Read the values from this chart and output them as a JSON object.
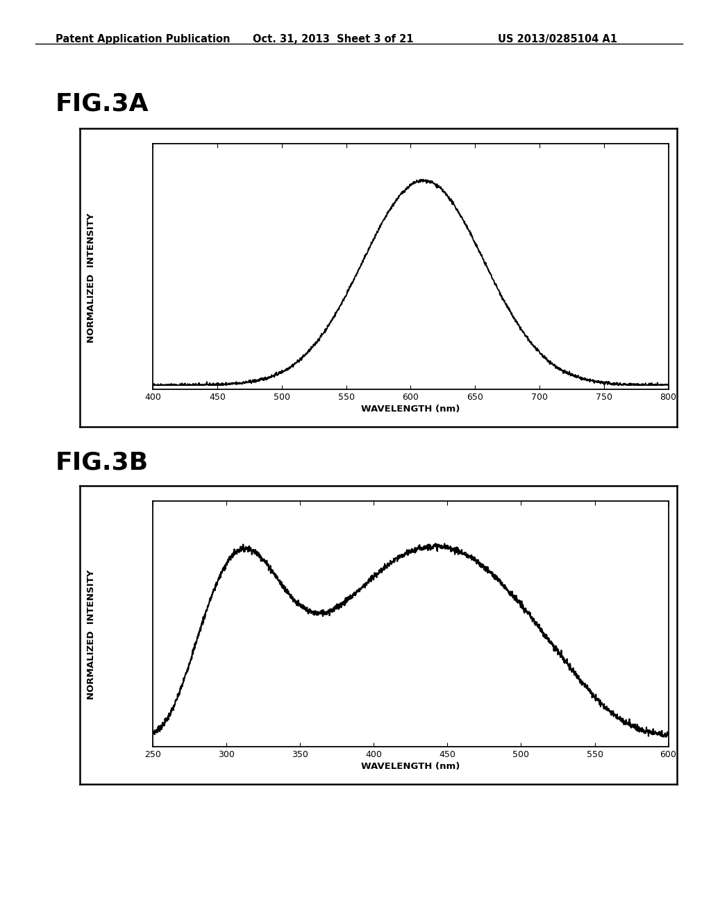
{
  "header_left": "Patent Application Publication",
  "header_mid": "Oct. 31, 2013  Sheet 3 of 21",
  "header_right": "US 2013/0285104 A1",
  "fig3a_label": "FIG.3A",
  "fig3b_label": "FIG.3B",
  "fig3a_xlabel": "WAVELENGTH (nm)",
  "fig3a_ylabel": "NORMALIZED  INTENSITY",
  "fig3b_xlabel": "WAVELENGTH (nm)",
  "fig3b_ylabel": "NORMALIZED  INTENSITY",
  "fig3a_xticks": [
    400,
    450,
    500,
    550,
    600,
    650,
    700,
    750,
    800
  ],
  "fig3b_xticks": [
    250,
    300,
    350,
    400,
    450,
    500,
    550,
    600
  ],
  "fig3a_xlim": [
    400,
    800
  ],
  "fig3b_xlim": [
    250,
    600
  ],
  "background_color": "#ffffff",
  "line_color": "#000000",
  "text_color": "#000000",
  "header_fontsize": 10.5,
  "figlabel_fontsize": 26,
  "axis_label_fontsize": 9.5,
  "tick_fontsize": 9
}
